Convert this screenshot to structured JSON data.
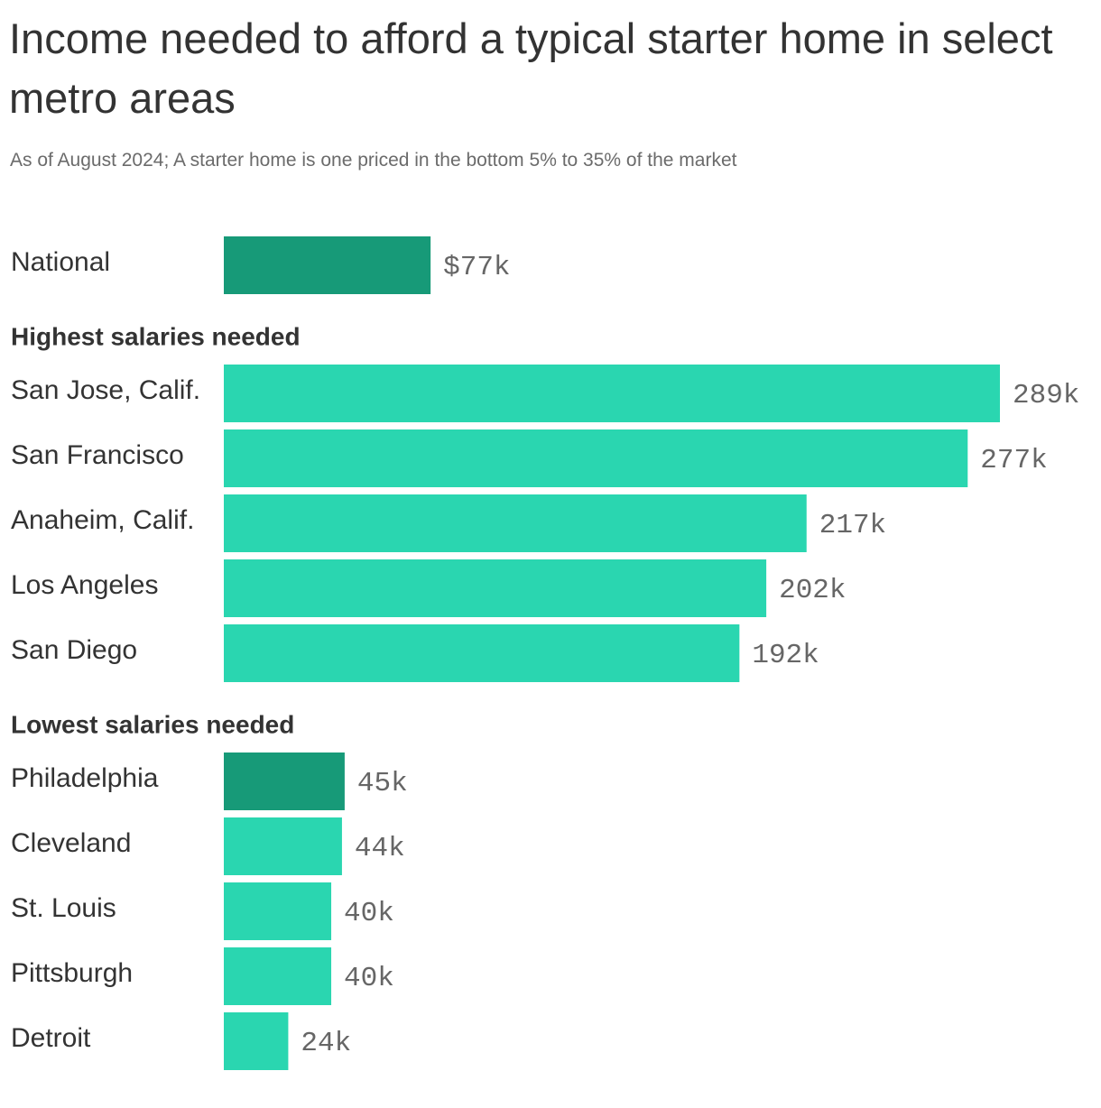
{
  "chart_data": {
    "type": "bar",
    "title": "Income needed to afford a typical starter home in select metro areas",
    "subtitle": "As of August 2024; A starter home is one priced in the bottom 5% to 35% of the market",
    "groups": [
      {
        "categories": [
          "National"
        ],
        "values": [
          77
        ],
        "value_labels": [
          "$77k"
        ],
        "colors": [
          "#179a78"
        ]
      },
      {
        "name": "Highest salaries needed",
        "categories": [
          "San Jose, Calif.",
          "San Francisco",
          "Anaheim, Calif.",
          "Los Angeles",
          "San Diego"
        ],
        "values": [
          289,
          277,
          217,
          202,
          192
        ],
        "value_labels": [
          "289k",
          "277k",
          "217k",
          "202k",
          "192k"
        ],
        "colors": [
          "#2ad6b0",
          "#2ad6b0",
          "#2ad6b0",
          "#2ad6b0",
          "#2ad6b0"
        ]
      },
      {
        "name": "Lowest salaries needed",
        "categories": [
          "Philadelphia",
          "Cleveland",
          "St. Louis",
          "Pittsburgh",
          "Detroit"
        ],
        "values": [
          45,
          44,
          40,
          40,
          24
        ],
        "value_labels": [
          "45k",
          "44k",
          "40k",
          "40k",
          "24k"
        ],
        "colors": [
          "#179a78",
          "#2ad6b0",
          "#2ad6b0",
          "#2ad6b0",
          "#2ad6b0"
        ]
      }
    ]
  }
}
